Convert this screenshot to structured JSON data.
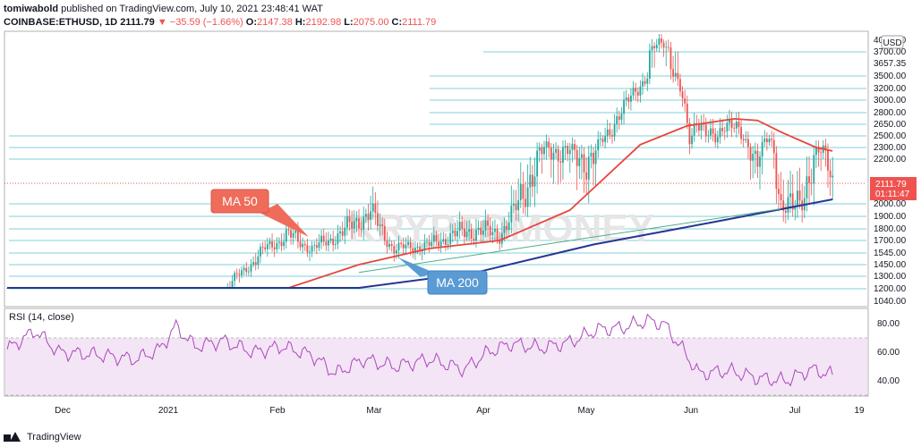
{
  "header": {
    "author": "tomiwabold",
    "published": " published on TradingView.com, July 10, 2021 23:48:41 WAT",
    "symbol": "COINBASE:ETHUSD, 1D",
    "last": "2111.79",
    "arrow": "▼",
    "change": "−35.59 (−1.66%)",
    "o_label": "O:",
    "o": "2147.38",
    "h_label": "H:",
    "h": "2192.98",
    "l_label": "L:",
    "l": "2075.00",
    "c_label": "C:",
    "c": "2111.79"
  },
  "watermark": "KRYPTOMONEY",
  "footer": {
    "brand": "TradingView"
  },
  "colors": {
    "ma50": "#e8453c",
    "ma200": "#283593",
    "trend": "#4caf8a",
    "hline": "#7fd0d8",
    "rsi": "#ab47bc",
    "rsi_band": "#f3e5f5",
    "up": "#26a69a",
    "down": "#ef5350",
    "price_tag": "#ef5350",
    "label_ma50": "#ef6c5a",
    "label_ma200": "#5b9bd5"
  },
  "chart_data": [
    {
      "type": "candlestick",
      "title": "",
      "currency": "USD",
      "y_ticks": [
        4000,
        3700,
        3657.35,
        3500,
        3200,
        3000,
        2800,
        2650,
        2500,
        2300,
        2200,
        2000,
        1900,
        1800,
        1700,
        1545,
        1450,
        1300,
        1200,
        1040
      ],
      "y_tick_labels": [
        "4000.00",
        "3700.00",
        "3657.35",
        "3500.00",
        "3200.00",
        "3000.00",
        "2800.00",
        "2650.00",
        "2500.00",
        "2300.00",
        "2200.00",
        "2000.00",
        "1900.00",
        "1800.00",
        "1700.00",
        "1545.00",
        "1450.00",
        "1300.00",
        "1200.00",
        "1040.00"
      ],
      "horizontal_levels": [
        3700,
        3500,
        3200,
        3000,
        2800,
        2650,
        2500,
        2300,
        2200,
        2000,
        1900,
        1800,
        1700,
        1545,
        1450,
        1300,
        1200
      ],
      "x_ticks": [
        "Dec",
        "2021",
        "Feb",
        "Mar",
        "Apr",
        "May",
        "Jun",
        "Jul",
        "19"
      ],
      "last_price": "2111.79",
      "countdown": "01:11:47",
      "close": [
        [
          0,
          560
        ],
        [
          15,
          580
        ],
        [
          30,
          600
        ],
        [
          45,
          590
        ],
        [
          60,
          640
        ],
        [
          75,
          730
        ],
        [
          90,
          1100
        ],
        [
          100,
          1350
        ],
        [
          110,
          1600
        ],
        [
          120,
          1750
        ],
        [
          130,
          1600
        ],
        [
          145,
          1800
        ],
        [
          155,
          1940
        ],
        [
          165,
          1600
        ],
        [
          180,
          1640
        ],
        [
          190,
          1750
        ],
        [
          200,
          1790
        ],
        [
          210,
          1750
        ],
        [
          220,
          2050
        ],
        [
          230,
          2300
        ],
        [
          240,
          2250
        ],
        [
          250,
          2200
        ],
        [
          255,
          2500
        ],
        [
          262,
          2800
        ],
        [
          268,
          3200
        ],
        [
          272,
          3400
        ],
        [
          276,
          3800
        ],
        [
          280,
          4000
        ],
        [
          284,
          3600
        ],
        [
          288,
          3000
        ],
        [
          291,
          2450
        ],
        [
          294,
          2750
        ],
        [
          298,
          2500
        ],
        [
          302,
          2450
        ],
        [
          306,
          2700
        ],
        [
          310,
          2600
        ],
        [
          315,
          2400
        ],
        [
          320,
          2200
        ],
        [
          325,
          2450
        ],
        [
          330,
          2000
        ],
        [
          335,
          1950
        ],
        [
          338,
          2000
        ],
        [
          342,
          2150
        ],
        [
          346,
          2250
        ],
        [
          350,
          2220
        ],
        [
          352,
          2111.79
        ]
      ],
      "note": "",
      "series": [
        {
          "name": "MA 50",
          "points": [
            [
              0,
              580
            ],
            [
              60,
              640
            ],
            [
              90,
              800
            ],
            [
              120,
              1100
            ],
            [
              150,
              1450
            ],
            [
              180,
              1600
            ],
            [
              210,
              1700
            ],
            [
              240,
              1950
            ],
            [
              270,
              2350
            ],
            [
              290,
              2630
            ],
            [
              310,
              2720
            ],
            [
              320,
              2700
            ],
            [
              330,
              2550
            ],
            [
              345,
              2300
            ],
            [
              352,
              2270
            ]
          ]
        },
        {
          "name": "MA 200",
          "points": [
            [
              0,
              560
            ],
            [
              80,
              720
            ],
            [
              150,
              1000
            ],
            [
              200,
              1350
            ],
            [
              250,
              1650
            ],
            [
              300,
              1850
            ],
            [
              352,
              2020
            ]
          ]
        },
        {
          "name": "",
          "points": [
            [
              150,
              1350
            ],
            [
              330,
              1960
            ]
          ]
        }
      ]
    },
    {
      "type": "line",
      "title": "RSI (14, close)",
      "ylim": [
        30,
        90
      ],
      "y_ticks": [
        80,
        60,
        40
      ],
      "y_tick_labels": [
        "80.00",
        "60.00",
        "40.00"
      ],
      "band": [
        30,
        70
      ],
      "series": [
        {
          "name": "",
          "values": [
            [
              0,
              62
            ],
            [
              12,
              75
            ],
            [
              22,
              60
            ],
            [
              40,
              58
            ],
            [
              55,
              55
            ],
            [
              65,
              62
            ],
            [
              72,
              78
            ],
            [
              80,
              64
            ],
            [
              92,
              68
            ],
            [
              105,
              60
            ],
            [
              117,
              64
            ],
            [
              130,
              58
            ],
            [
              140,
              45
            ],
            [
              152,
              55
            ],
            [
              165,
              50
            ],
            [
              180,
              55
            ],
            [
              195,
              48
            ],
            [
              205,
              60
            ],
            [
              215,
              66
            ],
            [
              228,
              63
            ],
            [
              240,
              67
            ],
            [
              252,
              76
            ],
            [
              262,
              77
            ],
            [
              273,
              82
            ],
            [
              280,
              80
            ],
            [
              288,
              62
            ],
            [
              295,
              45
            ],
            [
              308,
              47
            ],
            [
              320,
              42
            ],
            [
              332,
              40
            ],
            [
              343,
              48
            ],
            [
              352,
              44
            ]
          ]
        }
      ]
    }
  ],
  "annotations": {
    "ma50": "MA 50",
    "ma200": "MA 200"
  }
}
